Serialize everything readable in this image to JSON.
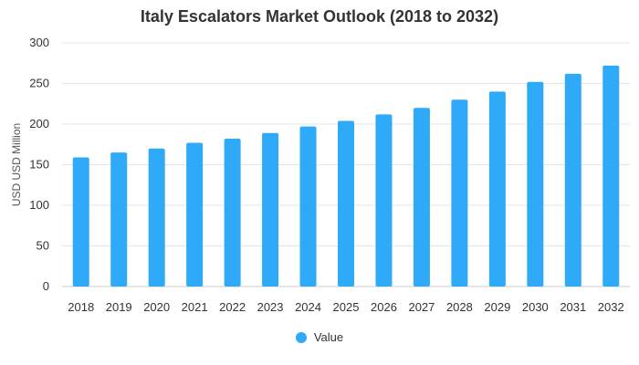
{
  "chart_data": {
    "type": "bar",
    "title": "Italy Escalators Market Outlook (2018 to 2032)",
    "xlabel": "",
    "ylabel": "USD USD Million",
    "categories": [
      "2018",
      "2019",
      "2020",
      "2021",
      "2022",
      "2023",
      "2024",
      "2025",
      "2026",
      "2027",
      "2028",
      "2029",
      "2030",
      "2031",
      "2032"
    ],
    "series": [
      {
        "name": "Value",
        "values": [
          159,
          165,
          170,
          177,
          182,
          189,
          197,
          204,
          212,
          220,
          230,
          240,
          252,
          262,
          272
        ],
        "color": "#2eaaf9"
      }
    ],
    "ylim": [
      0,
      300
    ],
    "yticks": [
      0,
      50,
      100,
      150,
      200,
      250,
      300
    ],
    "grid": true,
    "legend_position": "bottom-center",
    "gridline_color": "#e6e6e6"
  }
}
